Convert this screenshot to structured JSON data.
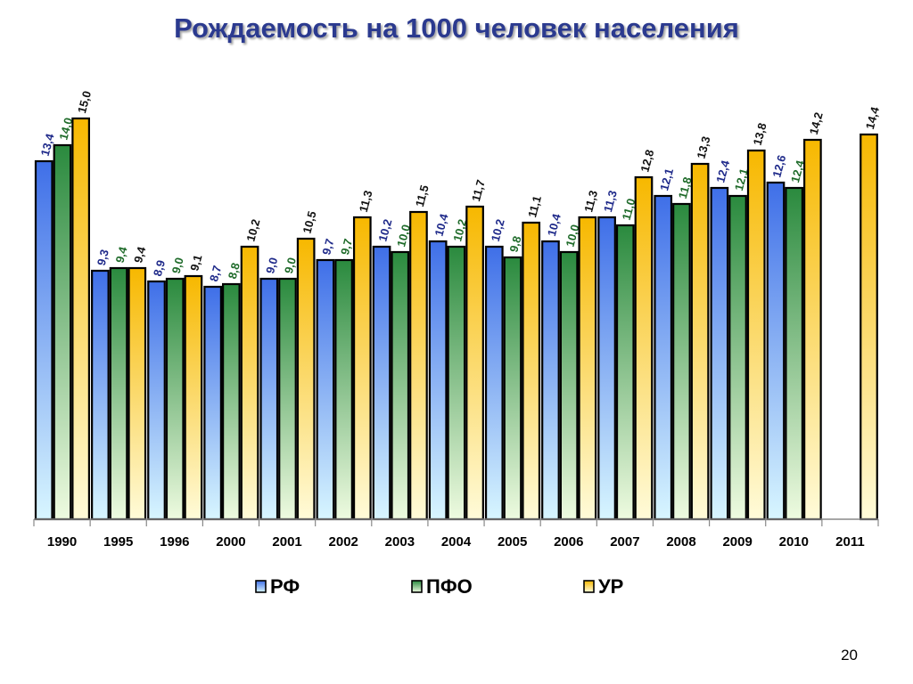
{
  "page": {
    "title": "Рождаемость на 1000 человек населения",
    "slide_number": "20"
  },
  "chart_data": {
    "type": "bar",
    "title": "Рождаемость на 1000 человек населения",
    "xlabel": "",
    "ylabel": "",
    "ylim": [
      0,
      16.5
    ],
    "grid": false,
    "legend_position": "bottom",
    "categories": [
      "1990",
      "1995",
      "1996",
      "2000",
      "2001",
      "2002",
      "2003",
      "2004",
      "2005",
      "2006",
      "2007",
      "2008",
      "2009",
      "2010",
      "2011"
    ],
    "series": [
      {
        "name": "РФ",
        "values": [
          13.4,
          9.3,
          8.9,
          8.7,
          9.0,
          9.7,
          10.2,
          10.4,
          10.2,
          10.4,
          11.3,
          12.1,
          12.4,
          12.6,
          null
        ],
        "labels": [
          "13,4",
          "9,3",
          "8,9",
          "8,7",
          "9,0",
          "9,7",
          "10,2",
          "10,4",
          "10,2",
          "10,4",
          "11,3",
          "12,1",
          "12,4",
          "12,6",
          ""
        ],
        "label_color": "#1f2a8a",
        "gradient": [
          "#3f6fe8",
          "#d8f6ff"
        ]
      },
      {
        "name": "ПФО",
        "values": [
          14.0,
          9.4,
          9.0,
          8.8,
          9.0,
          9.7,
          10.0,
          10.2,
          9.8,
          10.0,
          11.0,
          11.8,
          12.1,
          12.4,
          null
        ],
        "labels": [
          "14,0",
          "9,4",
          "9,0",
          "8,8",
          "9,0",
          "9,7",
          "10,0",
          "10,2",
          "9,8",
          "10,0",
          "11,0",
          "11,8",
          "12,1",
          "12,4",
          ""
        ],
        "label_color": "#1f6b2a",
        "gradient": [
          "#2a8a3e",
          "#eefbe0"
        ]
      },
      {
        "name": "УР",
        "values": [
          15.0,
          9.4,
          9.1,
          10.2,
          10.5,
          11.3,
          11.5,
          11.7,
          11.1,
          11.3,
          12.8,
          13.3,
          13.8,
          14.2,
          14.4
        ],
        "labels": [
          "15,0",
          "9,4",
          "9,1",
          "10,2",
          "10,5",
          "11,3",
          "11,5",
          "11,7",
          "11,1",
          "11,3",
          "12,8",
          "13,3",
          "13,8",
          "14,2",
          "14,4"
        ],
        "label_color": "#111111",
        "gradient": [
          "#f7b800",
          "#fffbd9"
        ]
      }
    ]
  }
}
